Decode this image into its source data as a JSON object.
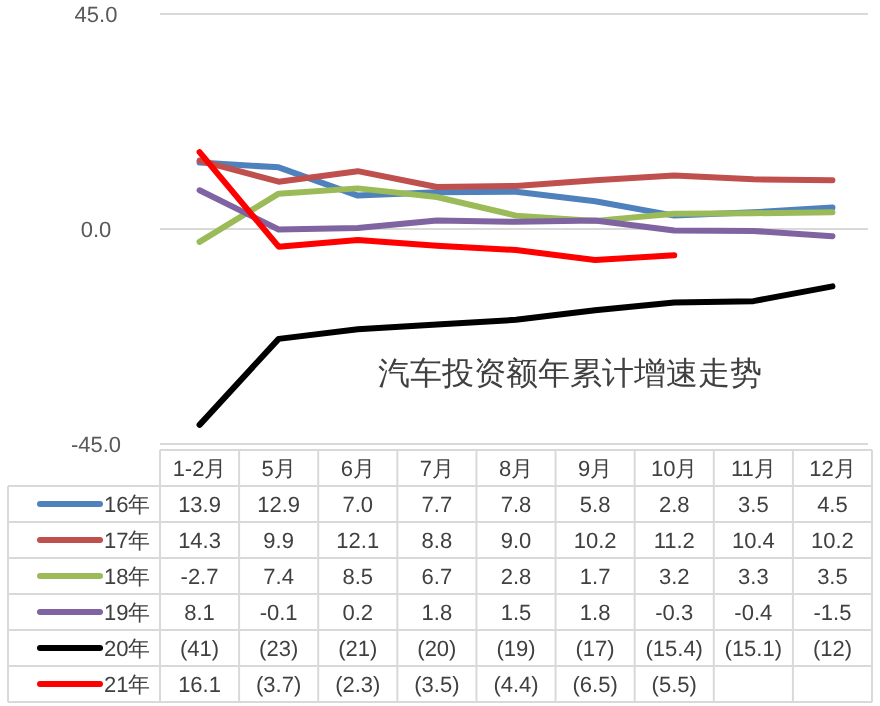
{
  "chart_data": {
    "type": "line",
    "title": "汽车投资额年累计增速走势",
    "categories": [
      "1-2月",
      "5月",
      "6月",
      "7月",
      "8月",
      "9月",
      "10月",
      "11月",
      "12月"
    ],
    "ylim": [
      -45,
      45
    ],
    "yticks": [
      {
        "value": -45,
        "label": "-45.0"
      },
      {
        "value": 0,
        "label": "0.0"
      },
      {
        "value": 45,
        "label": "45.0"
      }
    ],
    "grid": "y",
    "legend": "bottom",
    "marker": "none",
    "line_style": "solid",
    "series": [
      {
        "name": "16年",
        "color": "#4f81bd",
        "values": [
          13.9,
          12.9,
          7.0,
          7.7,
          7.8,
          5.8,
          2.8,
          3.5,
          4.5
        ],
        "value_labels": [
          "13.9",
          "12.9",
          "7.0",
          "7.7",
          "7.8",
          "5.8",
          "2.8",
          "3.5",
          "4.5"
        ]
      },
      {
        "name": "17年",
        "color": "#c0504d",
        "values": [
          14.3,
          9.9,
          12.1,
          8.8,
          9.0,
          10.2,
          11.2,
          10.4,
          10.2
        ],
        "value_labels": [
          "14.3",
          "9.9",
          "12.1",
          "8.8",
          "9.0",
          "10.2",
          "11.2",
          "10.4",
          "10.2"
        ]
      },
      {
        "name": "18年",
        "color": "#9bbb59",
        "values": [
          -2.7,
          7.4,
          8.5,
          6.7,
          2.8,
          1.7,
          3.2,
          3.3,
          3.5
        ],
        "value_labels": [
          "-2.7",
          "7.4",
          "8.5",
          "6.7",
          "2.8",
          "1.7",
          "3.2",
          "3.3",
          "3.5"
        ]
      },
      {
        "name": "19年",
        "color": "#8064a2",
        "values": [
          8.1,
          -0.1,
          0.2,
          1.8,
          1.5,
          1.8,
          -0.3,
          -0.4,
          -1.5
        ],
        "value_labels": [
          "8.1",
          "-0.1",
          "0.2",
          "1.8",
          "1.5",
          "1.8",
          "-0.3",
          "-0.4",
          "-1.5"
        ]
      },
      {
        "name": "20年",
        "color": "#000000",
        "values": [
          -41,
          -23,
          -21,
          -20,
          -19,
          -17,
          -15.4,
          -15.1,
          -12
        ],
        "value_labels": [
          "(41)",
          "(23)",
          "(21)",
          "(20)",
          "(19)",
          "(17)",
          "(15.4)",
          "(15.1)",
          "(12)"
        ]
      },
      {
        "name": "21年",
        "color": "#ff0000",
        "values": [
          16.1,
          -3.7,
          -2.3,
          -3.5,
          -4.4,
          -6.5,
          -5.5,
          null,
          null
        ],
        "value_labels": [
          "16.1",
          "(3.7)",
          "(2.3)",
          "(3.5)",
          "(4.4)",
          "(6.5)",
          "(5.5)",
          null,
          null
        ]
      }
    ]
  }
}
